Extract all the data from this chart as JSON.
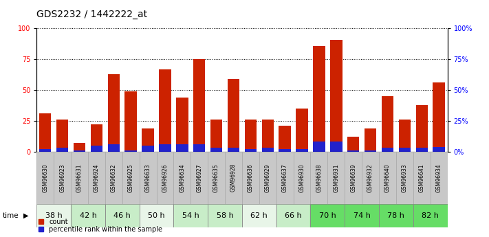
{
  "title": "GDS2232 / 1442222_at",
  "samples": [
    "GSM96630",
    "GSM96923",
    "GSM96631",
    "GSM96924",
    "GSM96632",
    "GSM96925",
    "GSM96633",
    "GSM96926",
    "GSM96634",
    "GSM96927",
    "GSM96635",
    "GSM96928",
    "GSM96636",
    "GSM96929",
    "GSM96637",
    "GSM96930",
    "GSM96638",
    "GSM96931",
    "GSM96639",
    "GSM96932",
    "GSM96640",
    "GSM96933",
    "GSM96641",
    "GSM96934"
  ],
  "time_groups": [
    {
      "label": "38 h",
      "indices": [
        0,
        1
      ],
      "color": "#e8f5e8"
    },
    {
      "label": "42 h",
      "indices": [
        2,
        3
      ],
      "color": "#c8edc8"
    },
    {
      "label": "46 h",
      "indices": [
        4,
        5
      ],
      "color": "#c8edc8"
    },
    {
      "label": "50 h",
      "indices": [
        6,
        7
      ],
      "color": "#e8f5e8"
    },
    {
      "label": "54 h",
      "indices": [
        8,
        9
      ],
      "color": "#c8edc8"
    },
    {
      "label": "58 h",
      "indices": [
        10,
        11
      ],
      "color": "#c8edc8"
    },
    {
      "label": "62 h",
      "indices": [
        12,
        13
      ],
      "color": "#e8f5e8"
    },
    {
      "label": "66 h",
      "indices": [
        14,
        15
      ],
      "color": "#c8edc8"
    },
    {
      "label": "70 h",
      "indices": [
        16,
        17
      ],
      "color": "#66dd66"
    },
    {
      "label": "74 h",
      "indices": [
        18,
        19
      ],
      "color": "#66dd66"
    },
    {
      "label": "78 h",
      "indices": [
        20,
        21
      ],
      "color": "#66dd66"
    },
    {
      "label": "82 h",
      "indices": [
        22,
        23
      ],
      "color": "#66dd66"
    }
  ],
  "count_values": [
    31,
    26,
    7,
    22,
    63,
    49,
    19,
    67,
    44,
    75,
    26,
    59,
    26,
    26,
    21,
    35,
    86,
    91,
    12,
    19,
    45,
    26,
    38,
    56
  ],
  "percentile_values": [
    2,
    3,
    1,
    5,
    6,
    1,
    5,
    6,
    6,
    6,
    3,
    3,
    2,
    3,
    2,
    2,
    8,
    8,
    1,
    1,
    3,
    3,
    3,
    4
  ],
  "bar_color": "#cc2200",
  "percentile_color": "#2222cc",
  "ylim": [
    0,
    100
  ],
  "yticks": [
    0,
    25,
    50,
    75,
    100
  ],
  "grid_color": "#000000",
  "title_fontsize": 10,
  "tick_fontsize": 7,
  "label_fontsize": 8,
  "sample_label_bg": "#cccccc",
  "plot_bg": "#ffffff"
}
